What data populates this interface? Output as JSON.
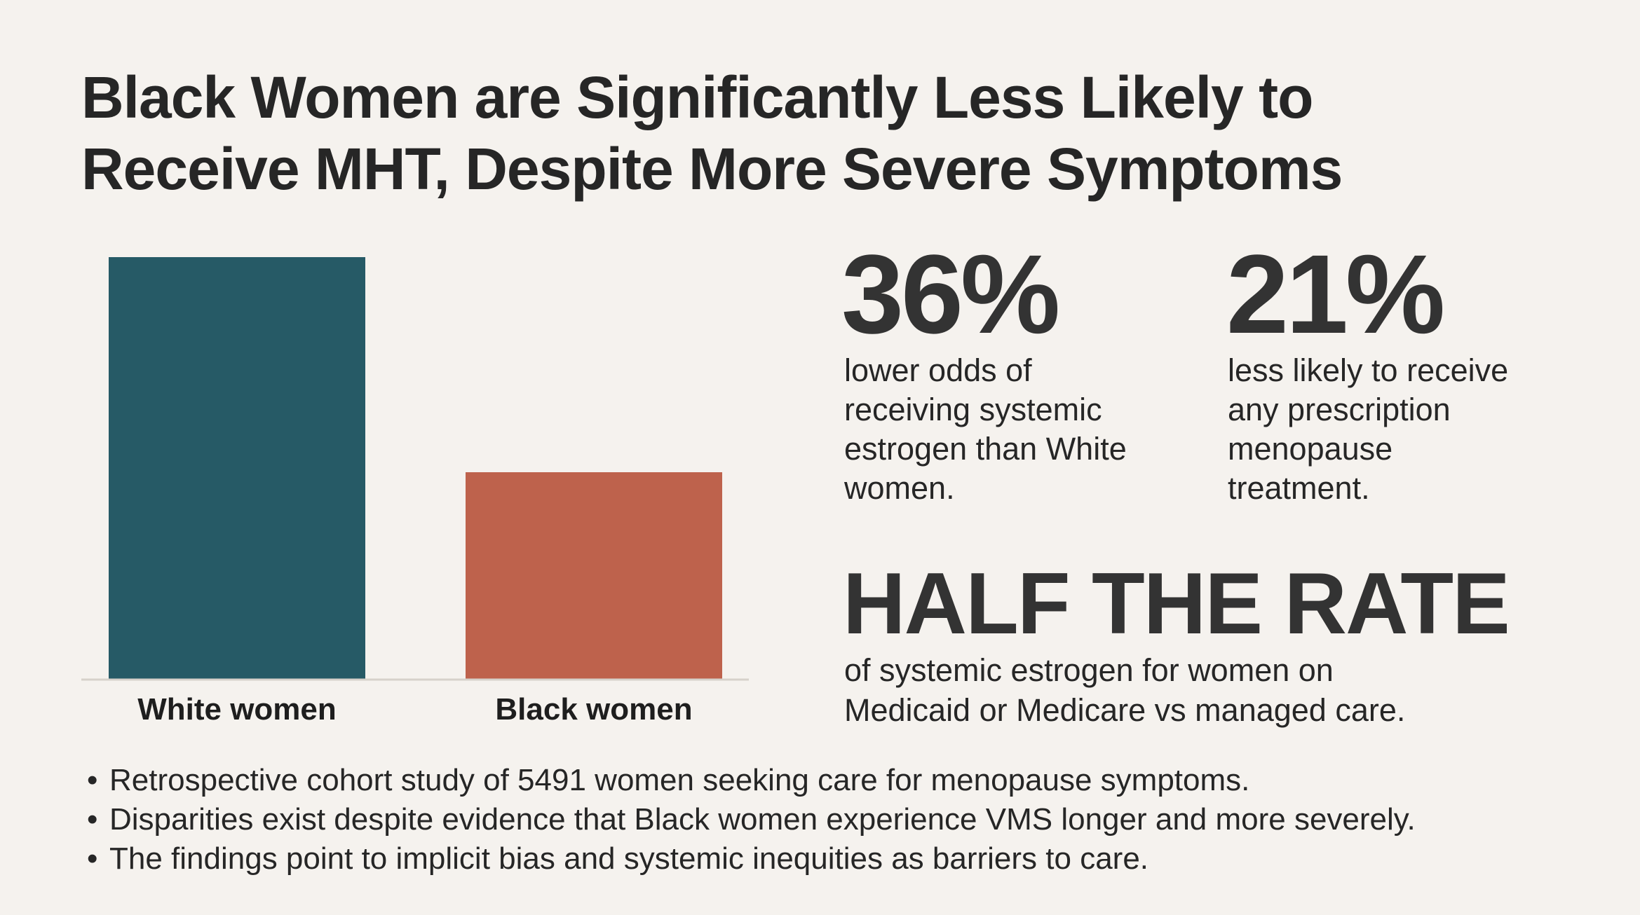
{
  "title_lines": [
    "Black Women are Significantly Less Likely to",
    "Receive MHT, Despite More Severe Symptoms"
  ],
  "chart_data": {
    "type": "bar",
    "title": "",
    "xlabel": "",
    "ylabel": "",
    "categories": [
      "White women",
      "Black women"
    ],
    "values": [
      1.0,
      0.49
    ],
    "value_note_axis": "no y-axis shown; relative heights",
    "colors": [
      "#265a66",
      "#be624c"
    ],
    "grid": false,
    "baseline_color": "#d6d1cb"
  },
  "stats": [
    {
      "value": "36%",
      "desc_lines": [
        "lower odds of",
        "receiving systemic",
        "estrogen than White",
        "women."
      ]
    },
    {
      "value": "21%",
      "desc_lines": [
        "less likely to receive",
        "any prescription",
        "menopause",
        "treatment."
      ]
    }
  ],
  "half": {
    "headline": "HALF THE RATE",
    "desc_lines": [
      "of systemic estrogen for women on",
      "Medicaid or Medicare vs managed care."
    ]
  },
  "bullets": [
    "Retrospective cohort study of 5491 women seeking care for menopause symptoms.",
    "Disparities exist despite evidence that Black women experience VMS longer and more severely.",
    "The findings point to implicit bias and systemic inequities as barriers to care."
  ],
  "colors": {
    "background": "#f5f2ee",
    "text": "#262626"
  }
}
